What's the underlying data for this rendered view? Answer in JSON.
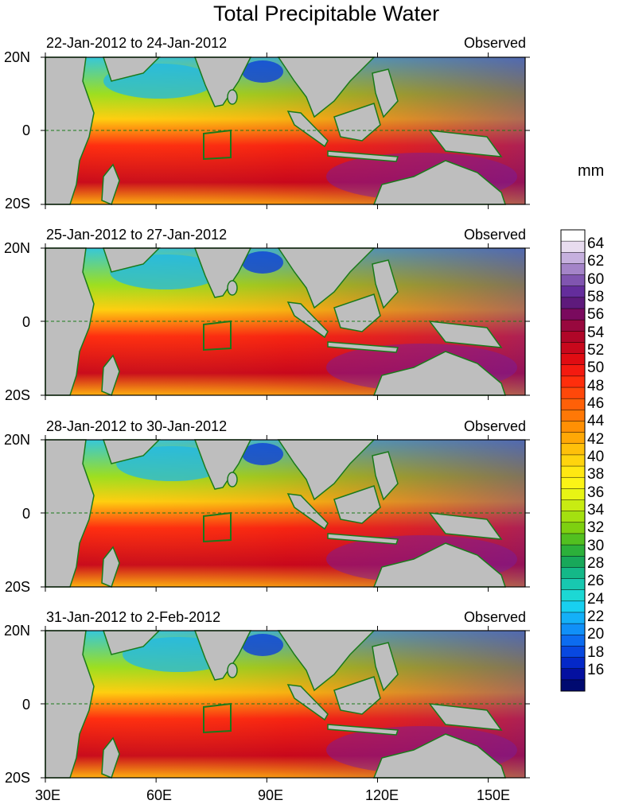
{
  "title": "Total Precipitable Water",
  "unit": "mm",
  "panels": [
    {
      "date_range": "22-Jan-2012 to 24-Jan-2012",
      "label": "Observed"
    },
    {
      "date_range": "25-Jan-2012 to 27-Jan-2012",
      "label": "Observed"
    },
    {
      "date_range": "28-Jan-2012 to 30-Jan-2012",
      "label": "Observed"
    },
    {
      "date_range": "31-Jan-2012 to 2-Feb-2012",
      "label": "Observed"
    }
  ],
  "lat_labels": {
    "north": "20N",
    "equator": "0",
    "south": "20S"
  },
  "lon_labels": [
    "30E",
    "60E",
    "90E",
    "120E",
    "150E"
  ],
  "colorbar": {
    "labels": [
      "64",
      "62",
      "60",
      "58",
      "56",
      "54",
      "52",
      "50",
      "48",
      "46",
      "44",
      "42",
      "40",
      "38",
      "36",
      "34",
      "32",
      "30",
      "28",
      "26",
      "24",
      "22",
      "20",
      "18",
      "16"
    ],
    "colors": [
      "#ffffff",
      "#e8dcef",
      "#c6b0de",
      "#a484c8",
      "#8055b0",
      "#642d9c",
      "#5e1a7c",
      "#7a0a5e",
      "#98083e",
      "#b00628",
      "#c8081c",
      "#e00c12",
      "#f41a10",
      "#ff2e0c",
      "#ff480a",
      "#ff6008",
      "#ff7806",
      "#ff9004",
      "#ffa806",
      "#ffc00a",
      "#ffd40e",
      "#ffe812",
      "#fcf416",
      "#e8f414",
      "#c8ec12",
      "#a4e010",
      "#7ed010",
      "#52c020",
      "#2cb03a",
      "#18a85a",
      "#14b888",
      "#18c8b0",
      "#1cd8d4",
      "#18d0f0",
      "#14b0f8",
      "#1090f8",
      "#0c6cf0",
      "#0848e0",
      "#0428c8",
      "#0410a0",
      "#000a70"
    ]
  }
}
